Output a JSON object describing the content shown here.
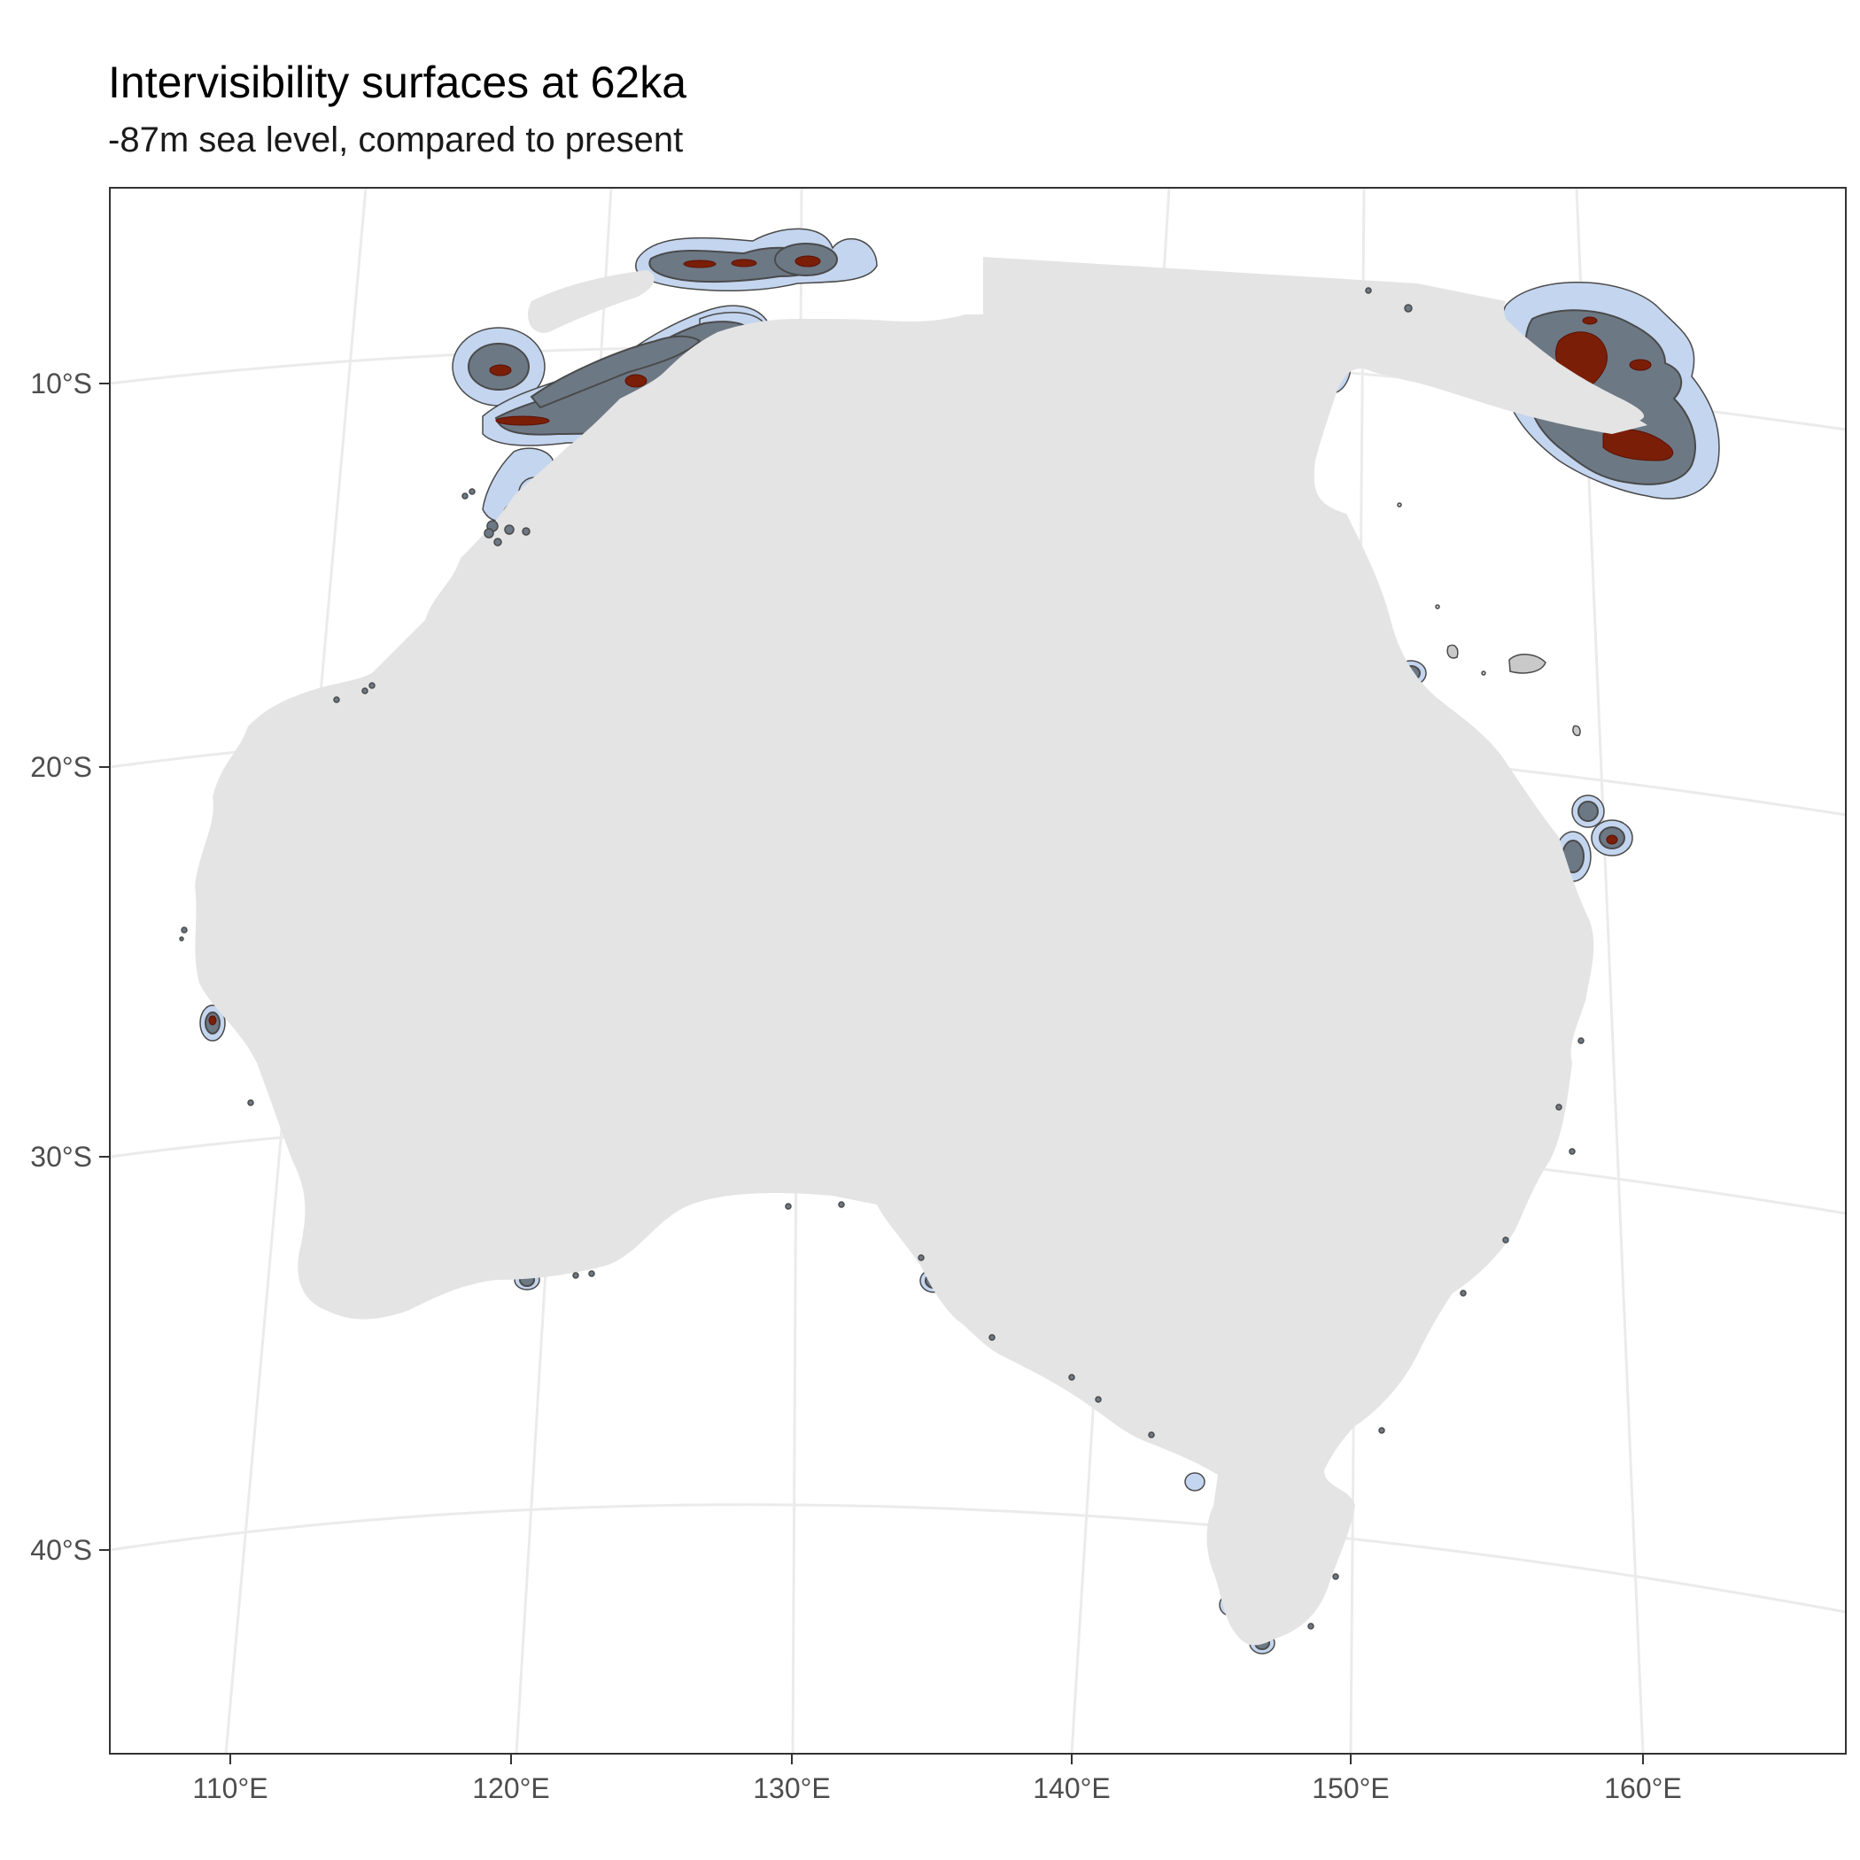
{
  "title": "Intervisibility surfaces at 62ka",
  "subtitle": "-87m sea level, compared to present",
  "map": {
    "longitude_axis": [
      "110°E",
      "120°E",
      "130°E",
      "140°E",
      "150°E",
      "160°E"
    ],
    "latitude_axis": [
      "10°S",
      "20°S",
      "30°S",
      "40°S"
    ],
    "colors": {
      "panel_border": "#333333",
      "graticule": "#ebebeb",
      "land": "#e4e4e4",
      "outer_visibility": "#c4d5ef",
      "inner_visibility": "#6d7885",
      "core_visibility": "#7a1e08",
      "island_outline": "#4a4a4a",
      "small_island": "#c9c9c9"
    }
  }
}
